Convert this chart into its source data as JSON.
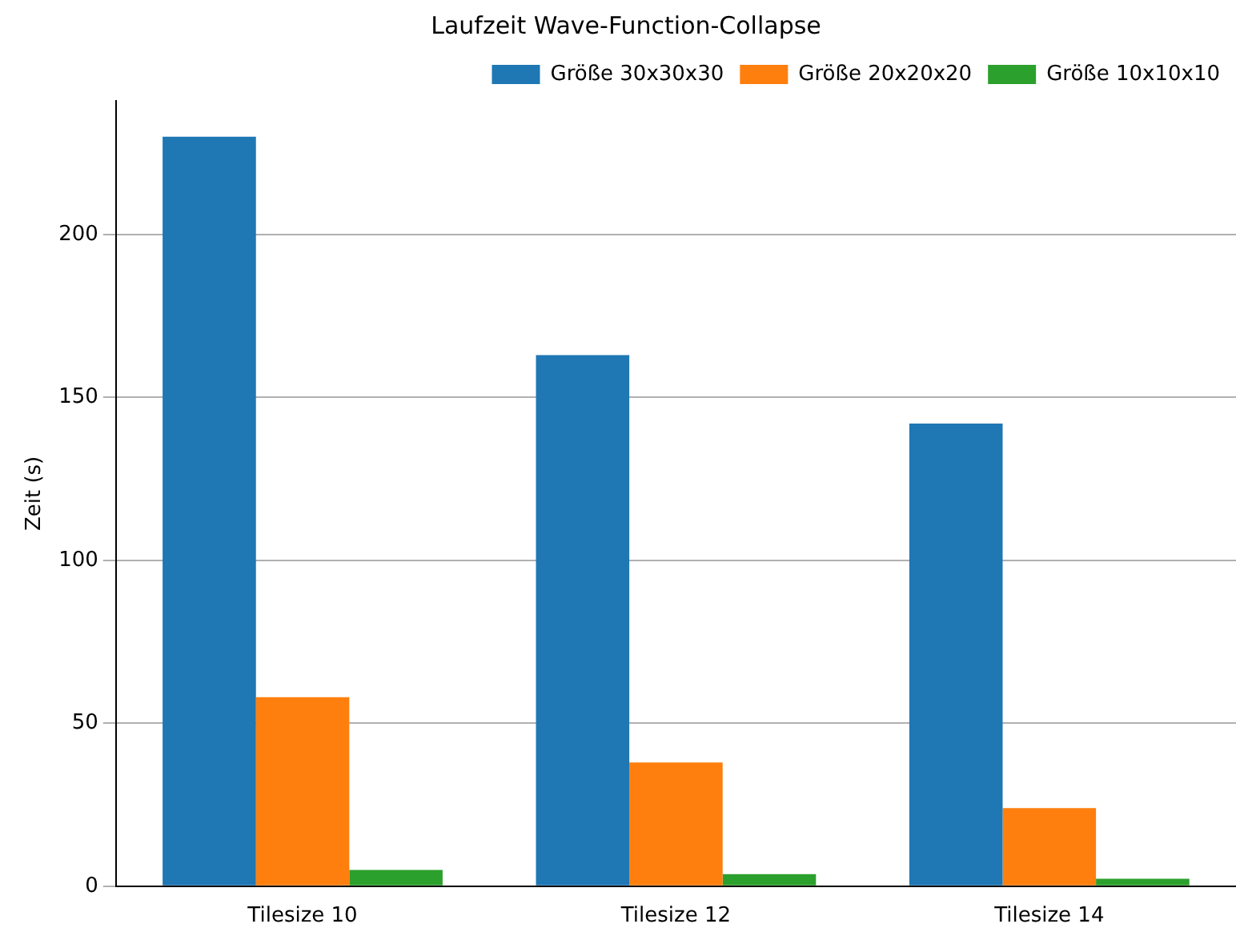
{
  "chart_data": {
    "type": "bar",
    "title": "Laufzeit Wave-Function-Collapse",
    "ylabel": "Zeit (s)",
    "categories": [
      "Tilesize 10",
      "Tilesize 12",
      "Tilesize 14"
    ],
    "series": [
      {
        "name": "Größe 30x30x30",
        "color": "#1f77b4",
        "values": [
          230,
          163,
          142
        ]
      },
      {
        "name": "Größe 20x20x20",
        "color": "#ff7f0e",
        "values": [
          58,
          38,
          24
        ]
      },
      {
        "name": "Größe 10x10x10",
        "color": "#2ca02c",
        "values": [
          5,
          3.7,
          2.3
        ]
      }
    ],
    "ylim": [
      0,
      241
    ],
    "yticks": [
      0,
      50,
      100,
      150,
      200
    ],
    "grid": "y",
    "legend": "top right"
  }
}
